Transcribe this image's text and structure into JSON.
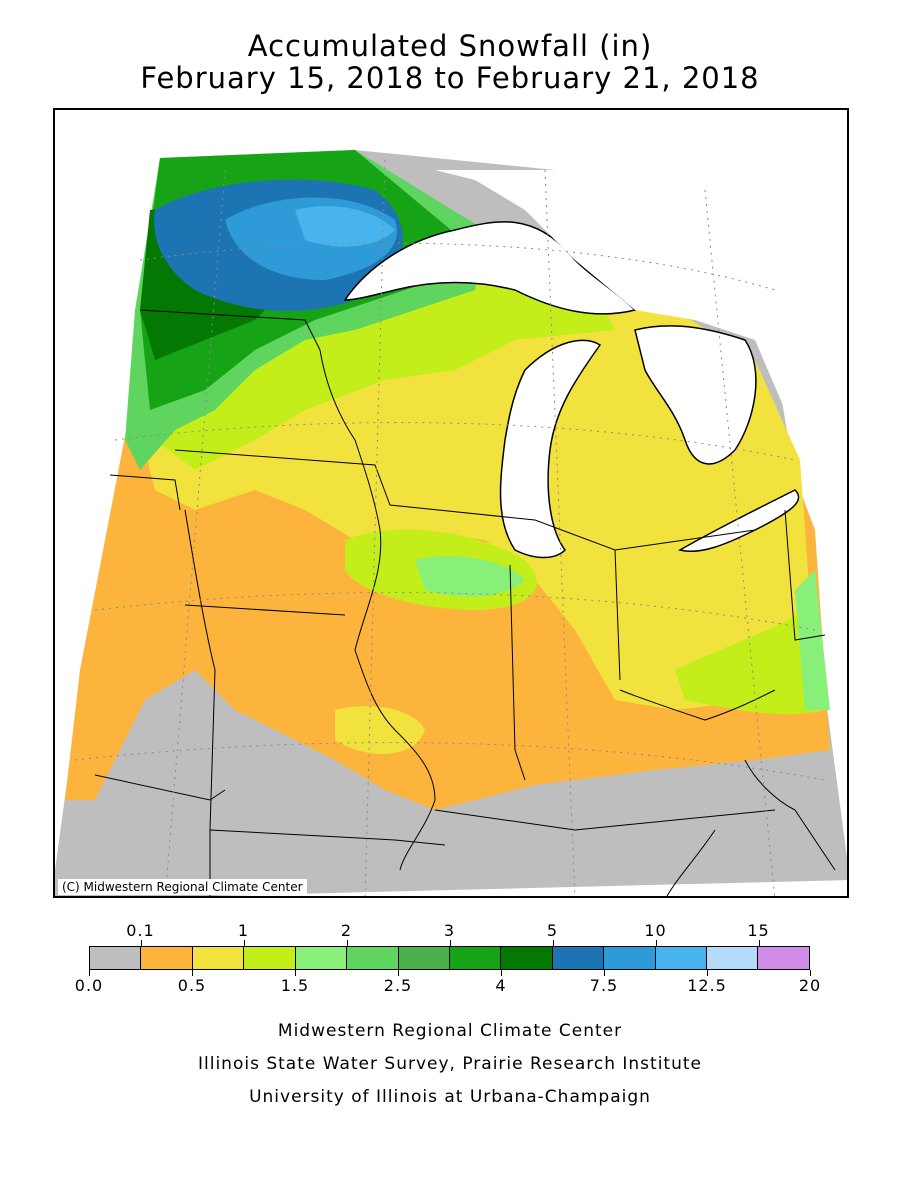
{
  "title": "Accumulated Snowfall (in)",
  "subtitle": "February 15, 2018 to February 21, 2018",
  "copyright": "(C) Midwestern Regional Climate Center",
  "legend": {
    "colors": [
      "#bebebe",
      "#fcb43c",
      "#f2e23e",
      "#c4ee1a",
      "#88ef78",
      "#5fd55f",
      "#4cb04c",
      "#16a416",
      "#037903",
      "#1d74b2",
      "#2f9ad8",
      "#47b4ee",
      "#b4dcfa",
      "#d08ae8"
    ],
    "top_labels": [
      "0.1",
      "1",
      "2",
      "3",
      "5",
      "10",
      "15"
    ],
    "bottom_labels": [
      "0.0",
      "0.5",
      "1.5",
      "2.5",
      "4",
      "7.5",
      "12.5",
      "20"
    ]
  },
  "credits": [
    "Midwestern Regional Climate Center",
    "Illinois State Water Survey, Prairie Research Institute",
    "University of Illinois at Urbana-Champaign"
  ]
}
